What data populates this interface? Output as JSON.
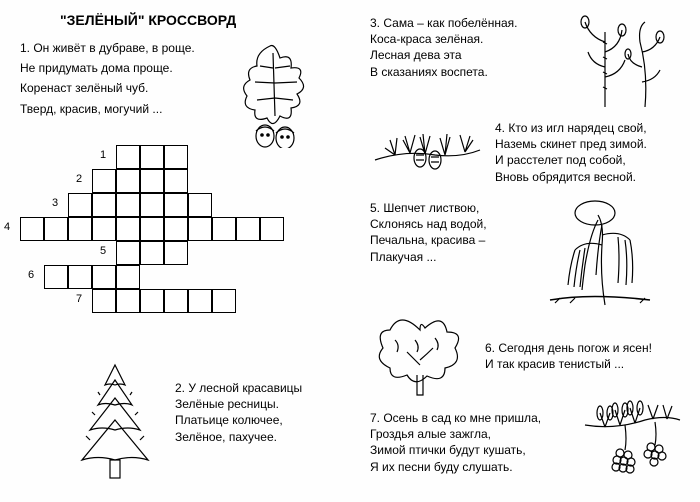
{
  "title": "\"ЗЕЛЁНЫЙ\" КРОССВОРД",
  "clue1": {
    "l1": "1. Он живёт в дубраве, в роще.",
    "l2": "Не придумать дома проще.",
    "l3": "Коренаст зелёный чуб.",
    "l4": "Тверд, красив, могучий ..."
  },
  "clue2": {
    "l1": "2. У лесной красавицы",
    "l2": "Зелёные ресницы.",
    "l3": "Платьице колючее,",
    "l4": "Зелёное, пахучее."
  },
  "clue3": {
    "l1": "3. Сама – как побелённая.",
    "l2": "Коса-краса зелёная.",
    "l3": "Лесная дева эта",
    "l4": "В сказаниях воспета."
  },
  "clue4": {
    "l1": "4. Кто из игл нарядец свой,",
    "l2": "Наземь скинет пред зимой.",
    "l3": "И расстелет под собой,",
    "l4": "Вновь обрядится весной."
  },
  "clue5": {
    "l1": "5. Шепчет листвою,",
    "l2": "Склонясь над водой,",
    "l3": "Печальна, красива –",
    "l4": "Плакучая ..."
  },
  "clue6": {
    "l1": "6. Сегодня день погож и ясен!",
    "l2": "И так красив тенистый ..."
  },
  "clue7": {
    "l1": "7. Осень в сад ко мне пришла,",
    "l2": "Гроздья алые зажгла,",
    "l3": "Зимой птички будут кушать,",
    "l4": "Я их песни буду слушать."
  },
  "grid": {
    "cell_size": 24,
    "rows": [
      {
        "num": 1,
        "col": 4,
        "row": 0,
        "len": 3
      },
      {
        "num": 2,
        "col": 3,
        "row": 1,
        "len": 4
      },
      {
        "num": 3,
        "col": 2,
        "row": 2,
        "len": 6
      },
      {
        "num": 4,
        "col": 0,
        "row": 3,
        "len": 11
      },
      {
        "num": 5,
        "col": 4,
        "row": 4,
        "len": 3
      },
      {
        "num": 6,
        "col": 1,
        "row": 5,
        "len": 4
      },
      {
        "num": 7,
        "col": 3,
        "row": 6,
        "len": 6
      }
    ]
  }
}
